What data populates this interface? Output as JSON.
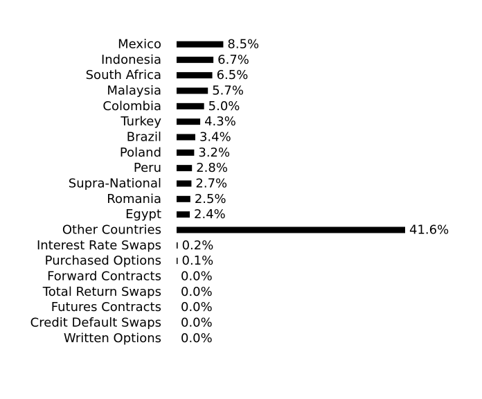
{
  "chart_data": {
    "type": "bar",
    "orientation": "horizontal",
    "categories": [
      "Mexico",
      "Indonesia",
      "South Africa",
      "Malaysia",
      "Colombia",
      "Turkey",
      "Brazil",
      "Poland",
      "Peru",
      "Supra-National",
      "Romania",
      "Egypt",
      "Other Countries",
      "Interest Rate Swaps",
      "Purchased Options",
      "Forward Contracts",
      "Total Return Swaps",
      "Futures Contracts",
      "Credit Default Swaps",
      "Written Options"
    ],
    "values": [
      8.5,
      6.7,
      6.5,
      5.7,
      5.0,
      4.3,
      3.4,
      3.2,
      2.8,
      2.7,
      2.5,
      2.4,
      41.6,
      0.2,
      0.1,
      0.0,
      0.0,
      0.0,
      0.0,
      0.0
    ],
    "value_labels": [
      "8.5%",
      "6.7%",
      "6.5%",
      "5.7%",
      "5.0%",
      "4.3%",
      "3.4%",
      "3.2%",
      "2.8%",
      "2.7%",
      "2.5%",
      "2.4%",
      "41.6%",
      "0.2%",
      "0.1%",
      "0.0%",
      "0.0%",
      "0.0%",
      "0.0%",
      "0.0%"
    ],
    "title": "",
    "xlabel": "",
    "ylabel": "",
    "xlim": [
      0,
      41.6
    ],
    "grid": false,
    "legend": "none",
    "bar_color": "#000000"
  }
}
